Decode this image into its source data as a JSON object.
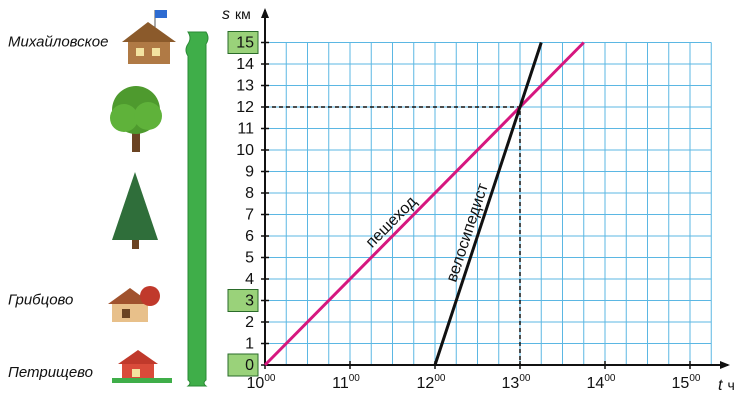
{
  "chart_data": {
    "type": "line",
    "y_axis_label": {
      "symbol": "s",
      "unit": "км"
    },
    "x_axis_label": {
      "symbol": "t",
      "unit": "ч"
    },
    "xlim": [
      10,
      15.25
    ],
    "ylim": [
      0,
      15
    ],
    "xticks": [
      {
        "value": 10,
        "label": "10",
        "minutes": "00"
      },
      {
        "value": 11,
        "label": "11",
        "minutes": "00"
      },
      {
        "value": 12,
        "label": "12",
        "minutes": "00"
      },
      {
        "value": 13,
        "label": "13",
        "minutes": "00"
      },
      {
        "value": 14,
        "label": "14",
        "minutes": "00"
      },
      {
        "value": 15,
        "label": "15",
        "minutes": "00"
      }
    ],
    "yticks": [
      0,
      1,
      2,
      3,
      4,
      5,
      6,
      7,
      8,
      9,
      10,
      11,
      12,
      13,
      14,
      15
    ],
    "grid": {
      "x_step": 0.25,
      "y_step": 1,
      "color": "#5bb7e3"
    },
    "villages": [
      {
        "name": "Михайловское",
        "km": 15
      },
      {
        "name": "Грибцово",
        "km": 3
      },
      {
        "name": "Петрищево",
        "km": 0
      }
    ],
    "series": [
      {
        "name": "пешеход",
        "color": "#d6177f",
        "x": [
          10,
          13.75
        ],
        "values": [
          0,
          15
        ]
      },
      {
        "name": "велосипедист",
        "color": "#111111",
        "x": [
          12,
          13.25
        ],
        "values": [
          0,
          15
        ]
      }
    ],
    "meeting": {
      "x": 13,
      "y": 12
    }
  }
}
